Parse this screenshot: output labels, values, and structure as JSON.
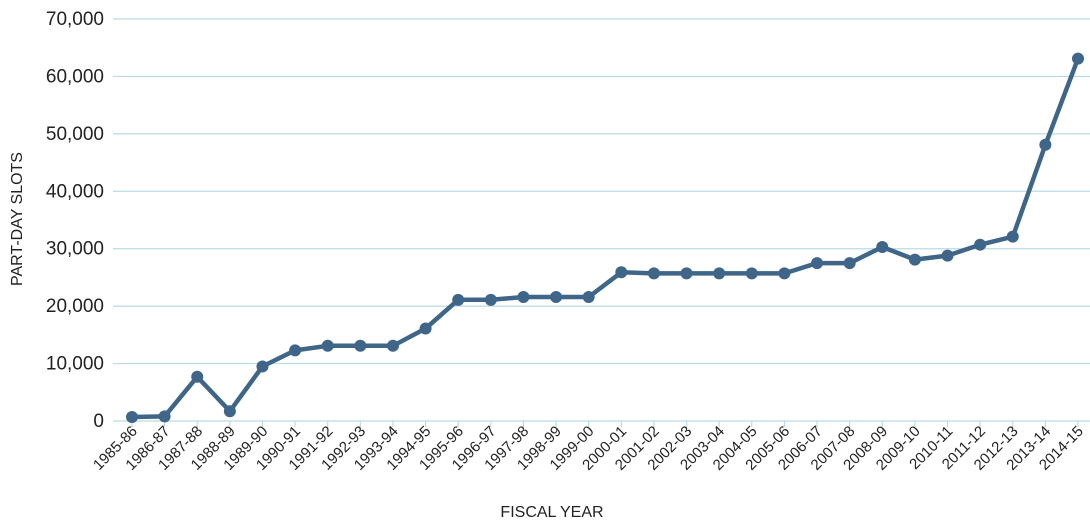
{
  "chart_data": {
    "type": "line",
    "title": "",
    "xlabel": "FISCAL YEAR",
    "ylabel": "PART-DAY SLOTS",
    "ylim": [
      0,
      70000
    ],
    "yticks": [
      0,
      10000,
      20000,
      30000,
      40000,
      50000,
      60000,
      70000
    ],
    "ytick_labels": [
      "0",
      "10,000",
      "20,000",
      "30,000",
      "40,000",
      "50,000",
      "60,000",
      "70,000"
    ],
    "grid": true,
    "legend": "none",
    "colors": {
      "line": "#3f6689",
      "grid": "#b9dce4"
    },
    "categories": [
      "1985-86",
      "1986-87",
      "1987-88",
      "1988-89",
      "1989-90",
      "1990-91",
      "1991-92",
      "1992-93",
      "1993-94",
      "1994-95",
      "1995-96",
      "1996-97",
      "1997-98",
      "1998-99",
      "1999-00",
      "2000-01",
      "2001-02",
      "2002-03",
      "2003-04",
      "2004-05",
      "2005-06",
      "2006-07",
      "2007-08",
      "2008-09",
      "2009-10",
      "2010-11",
      "2011-12",
      "2012-13",
      "2013-14",
      "2014-15"
    ],
    "series": [
      {
        "values": [
          700,
          800,
          7700,
          1700,
          9500,
          12300,
          13100,
          13100,
          13100,
          16100,
          21100,
          21100,
          21600,
          21600,
          21600,
          25900,
          25700,
          25700,
          25700,
          25700,
          25700,
          27500,
          27500,
          30300,
          28100,
          28800,
          30700,
          32100,
          48100,
          63100
        ]
      }
    ]
  }
}
